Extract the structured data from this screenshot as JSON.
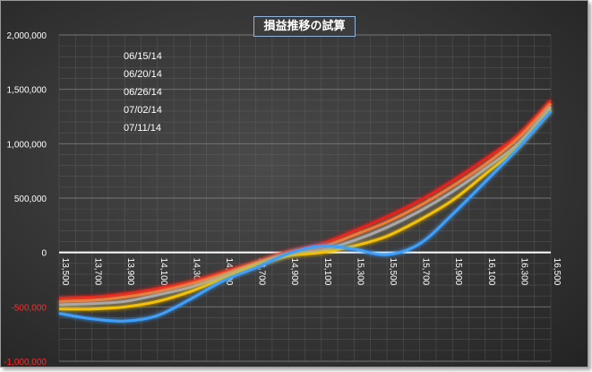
{
  "chart_data": {
    "type": "line",
    "title": "損益推移の試算",
    "xlabel": "",
    "ylabel": "",
    "x": [
      13500,
      13700,
      13900,
      14100,
      14300,
      14500,
      14700,
      14900,
      15100,
      15300,
      15500,
      15700,
      15900,
      16100,
      16300,
      16500
    ],
    "xlim": [
      13500,
      16500
    ],
    "ylim": [
      -1000000,
      2000000
    ],
    "y_ticks": [
      {
        "value": 2000000,
        "label": "2,000,000"
      },
      {
        "value": 1500000,
        "label": "1,500,000"
      },
      {
        "value": 1000000,
        "label": "1,000,000"
      },
      {
        "value": 500000,
        "label": "500,000"
      },
      {
        "value": 0,
        "label": "0"
      },
      {
        "value": -500000,
        "label": "-500,000"
      },
      {
        "value": -1000000,
        "label": "-1,000,000"
      }
    ],
    "x_ticks": [
      "13,500",
      "13,700",
      "13,900",
      "14,100",
      "14,300",
      "14,500",
      "14,700",
      "14,900",
      "15,100",
      "15,300",
      "15,500",
      "15,700",
      "15,900",
      "16,100",
      "16,300",
      "16,500"
    ],
    "grid": true,
    "legend_position": "top-left",
    "series": [
      {
        "name": "06/15/14",
        "color": "#e81c1c",
        "values": [
          -420000,
          -410000,
          -380000,
          -330000,
          -270000,
          -180000,
          -90000,
          10000,
          80000,
          200000,
          330000,
          480000,
          660000,
          860000,
          1080000,
          1400000
        ]
      },
      {
        "name": "06/20/14",
        "color": "#f07a30",
        "values": [
          -450000,
          -440000,
          -410000,
          -360000,
          -290000,
          -200000,
          -100000,
          -5000,
          50000,
          160000,
          280000,
          430000,
          610000,
          810000,
          1050000,
          1370000
        ]
      },
      {
        "name": "06/26/14",
        "color": "#a8a8a8",
        "values": [
          -480000,
          -470000,
          -450000,
          -390000,
          -320000,
          -220000,
          -110000,
          -20000,
          20000,
          110000,
          230000,
          380000,
          560000,
          770000,
          1000000,
          1340000
        ]
      },
      {
        "name": "07/02/14",
        "color": "#f5c000",
        "values": [
          -520000,
          -520000,
          -500000,
          -450000,
          -360000,
          -240000,
          -120000,
          -30000,
          0,
          60000,
          150000,
          300000,
          480000,
          720000,
          970000,
          1310000
        ]
      },
      {
        "name": "07/11/14",
        "color": "#3ea0ff",
        "values": [
          -560000,
          -610000,
          -630000,
          -580000,
          -430000,
          -260000,
          -140000,
          -10000,
          60000,
          30000,
          -20000,
          80000,
          350000,
          650000,
          960000,
          1300000
        ]
      }
    ]
  }
}
